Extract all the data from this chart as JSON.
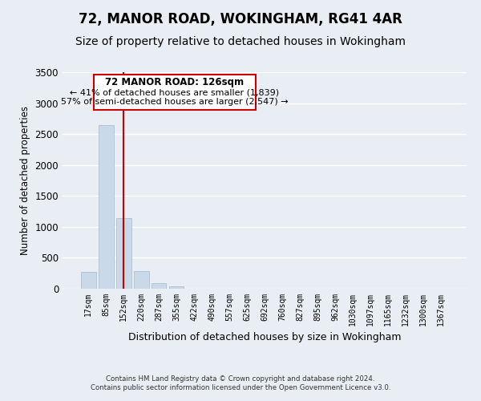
{
  "title": "72, MANOR ROAD, WOKINGHAM, RG41 4AR",
  "subtitle": "Size of property relative to detached houses in Wokingham",
  "xlabel": "Distribution of detached houses by size in Wokingham",
  "ylabel": "Number of detached properties",
  "bar_labels": [
    "17sqm",
    "85sqm",
    "152sqm",
    "220sqm",
    "287sqm",
    "355sqm",
    "422sqm",
    "490sqm",
    "557sqm",
    "625sqm",
    "692sqm",
    "760sqm",
    "827sqm",
    "895sqm",
    "962sqm",
    "1030sqm",
    "1097sqm",
    "1165sqm",
    "1232sqm",
    "1300sqm",
    "1367sqm"
  ],
  "bar_values": [
    270,
    2650,
    1140,
    280,
    95,
    45,
    0,
    0,
    0,
    0,
    0,
    0,
    0,
    0,
    0,
    0,
    0,
    0,
    0,
    0,
    0
  ],
  "bar_color": "#c9d9e8",
  "bar_edge_color": "#a0b8cc",
  "vline_x_index": 2,
  "vline_color": "#cc0000",
  "ylim": [
    0,
    3500
  ],
  "yticks": [
    0,
    500,
    1000,
    1500,
    2000,
    2500,
    3000,
    3500
  ],
  "annotation_title": "72 MANOR ROAD: 126sqm",
  "annotation_line1": "← 41% of detached houses are smaller (1,839)",
  "annotation_line2": "57% of semi-detached houses are larger (2,547) →",
  "annotation_box_color": "#ffffff",
  "annotation_box_edge_color": "#cc0000",
  "footer_line1": "Contains HM Land Registry data © Crown copyright and database right 2024.",
  "footer_line2": "Contains public sector information licensed under the Open Government Licence v3.0.",
  "background_color": "#e8eef4",
  "grid_color": "#ffffff",
  "title_fontsize": 12,
  "subtitle_fontsize": 10
}
